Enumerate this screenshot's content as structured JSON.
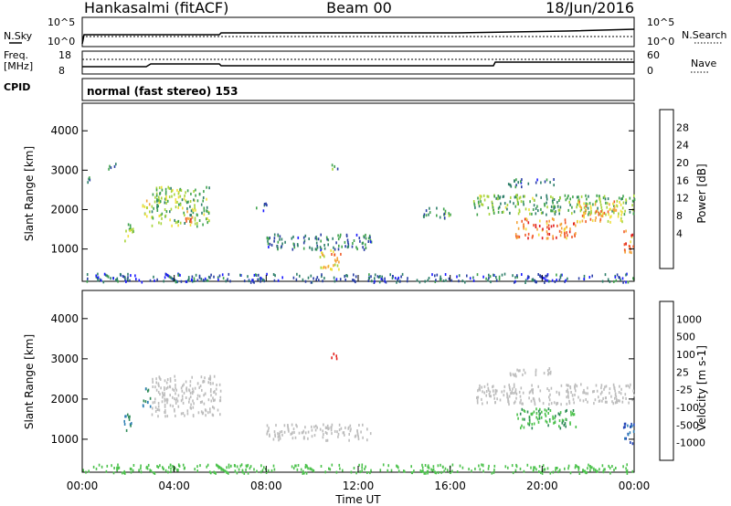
{
  "header": {
    "station": "Hankasalmi (fitACF)",
    "beam": "Beam 00",
    "date": "18/Jun/2016"
  },
  "noise_panel": {
    "left_label": "N.Sky",
    "right_label": "N.Search",
    "left_ticks": [
      "10^5",
      "10^0"
    ],
    "right_ticks": [
      "10^5",
      "10^0"
    ]
  },
  "freq_panel": {
    "left_label_1": "Freq.",
    "left_label_2": "[MHz]",
    "left_ticks": [
      "18",
      "8"
    ],
    "right_label": "Nave",
    "right_ticks": [
      "60",
      "0"
    ]
  },
  "cpid_panel": {
    "label": "CPID",
    "text": "normal (fast stereo) 153"
  },
  "axes": {
    "ylabel": "Slant Range [km]",
    "yticks": [
      "4000",
      "3000",
      "2000",
      "1000"
    ],
    "xticks": [
      "00:00",
      "04:00",
      "08:00",
      "12:00",
      "16:00",
      "20:00",
      "00:00"
    ],
    "xlabel": "Time UT"
  },
  "power_colorbar": {
    "label": "Power [dB]",
    "ticks": [
      "28",
      "24",
      "20",
      "16",
      "12",
      "8",
      "4"
    ],
    "colors": [
      "#1a1aff",
      "#2a3fa5",
      "#2e7f6a",
      "#3fa34d",
      "#a8d43a",
      "#f0e03c",
      "#f4a43a",
      "#f05a28",
      "#e01f1f"
    ]
  },
  "velocity_colorbar": {
    "label": "Velocity [m s-1]",
    "ticks": [
      "1000",
      "500",
      "100",
      "25",
      "-25",
      "-100",
      "-500",
      "-1000"
    ],
    "colors": [
      "#2446b8",
      "#2f7fb5",
      "#2e8b57",
      "#4cc24c",
      "#bdbdbd",
      "#f0d23c",
      "#f5a02a",
      "#f26b1f",
      "#e3201c"
    ]
  },
  "chart_data": {
    "type": "heatmap",
    "x_range_hours": [
      0,
      24
    ],
    "y_range_km": [
      180,
      4700
    ],
    "power_db_range": [
      0,
      30
    ],
    "velocity_range": [
      -1000,
      1000
    ],
    "power_patches": [
      {
        "t": [
          0.2,
          0.4
        ],
        "r": [
          2700,
          2900
        ],
        "p": 8
      },
      {
        "t": [
          1.1,
          1.6
        ],
        "r": [
          3050,
          3200
        ],
        "p": 8
      },
      {
        "t": [
          1.8,
          2.2
        ],
        "r": [
          1200,
          1700
        ],
        "p": 16
      },
      {
        "t": [
          2.6,
          3.0
        ],
        "r": [
          1800,
          2300
        ],
        "p": 16
      },
      {
        "t": [
          3.0,
          5.5
        ],
        "r": [
          1600,
          2600
        ],
        "p": 14
      },
      {
        "t": [
          4.3,
          4.8
        ],
        "r": [
          1700,
          2000
        ],
        "p": 24
      },
      {
        "t": [
          7.5,
          8.0
        ],
        "r": [
          2000,
          2200
        ],
        "p": 8
      },
      {
        "t": [
          8.0,
          12.6
        ],
        "r": [
          1000,
          1400
        ],
        "p": 8
      },
      {
        "t": [
          10.3,
          11.3
        ],
        "r": [
          500,
          1000
        ],
        "p": 20
      },
      {
        "t": [
          10.8,
          11.1
        ],
        "r": [
          3000,
          3200
        ],
        "p": 10
      },
      {
        "t": [
          14.8,
          16.0
        ],
        "r": [
          1800,
          2100
        ],
        "p": 10
      },
      {
        "t": [
          17.0,
          24.0
        ],
        "r": [
          1900,
          2400
        ],
        "p": 12
      },
      {
        "t": [
          18.5,
          20.5
        ],
        "r": [
          2600,
          2800
        ],
        "p": 8
      },
      {
        "t": [
          18.8,
          21.5
        ],
        "r": [
          1300,
          1800
        ],
        "p": 24
      },
      {
        "t": [
          21.5,
          23.5
        ],
        "r": [
          1700,
          2300
        ],
        "p": 20
      },
      {
        "t": [
          23.5,
          24.0
        ],
        "r": [
          900,
          1500
        ],
        "p": 24
      },
      {
        "t": [
          0.0,
          24.0
        ],
        "r": [
          180,
          400
        ],
        "p": 6
      }
    ],
    "velocity_patches": [
      {
        "t": [
          1.8,
          2.2
        ],
        "r": [
          1200,
          1700
        ],
        "v": 500
      },
      {
        "t": [
          2.6,
          3.0
        ],
        "r": [
          1800,
          2300
        ],
        "v": 500
      },
      {
        "t": [
          3.0,
          6.0
        ],
        "r": [
          1600,
          2600
        ],
        "v": 0
      },
      {
        "t": [
          8.0,
          12.6
        ],
        "r": [
          1000,
          1400
        ],
        "v": 0
      },
      {
        "t": [
          10.8,
          11.1
        ],
        "r": [
          3000,
          3200
        ],
        "v": -1000
      },
      {
        "t": [
          17.0,
          24.0
        ],
        "r": [
          1900,
          2400
        ],
        "v": 0
      },
      {
        "t": [
          18.5,
          20.5
        ],
        "r": [
          2600,
          2800
        ],
        "v": 0
      },
      {
        "t": [
          18.8,
          21.5
        ],
        "r": [
          1300,
          1800
        ],
        "v": 100
      },
      {
        "t": [
          23.5,
          24.0
        ],
        "r": [
          900,
          1500
        ],
        "v": 1000
      },
      {
        "t": [
          0.0,
          24.0
        ],
        "r": [
          180,
          400
        ],
        "v": 60
      }
    ]
  }
}
